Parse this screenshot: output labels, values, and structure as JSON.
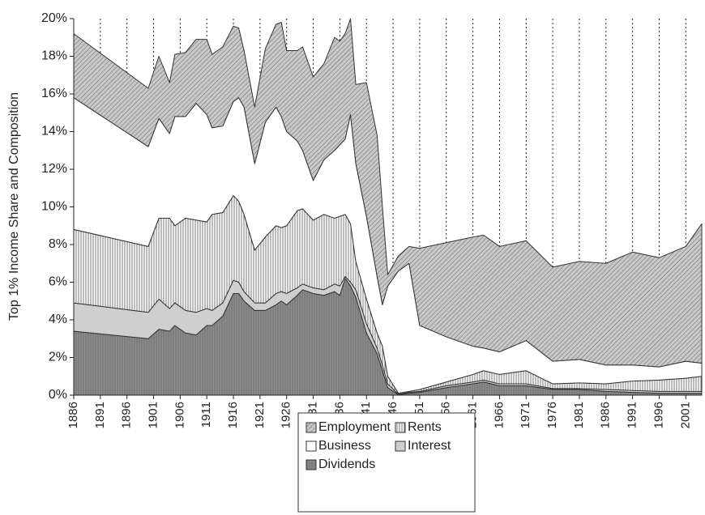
{
  "chart_data": {
    "type": "stacked_area",
    "y_label": "Top 1% Income Share and Composition",
    "xlim": [
      1886,
      2004
    ],
    "xticks": [
      1886,
      1891,
      1896,
      1901,
      1906,
      1911,
      1916,
      1921,
      1926,
      1931,
      1936,
      1941,
      1946,
      1951,
      1956,
      1961,
      1966,
      1971,
      1976,
      1981,
      1986,
      1991,
      1996,
      2001
    ],
    "ylim": [
      0,
      20
    ],
    "yticks": [
      {
        "value": 0,
        "label": "0%"
      },
      {
        "value": 2,
        "label": "2%"
      },
      {
        "value": 4,
        "label": "4%"
      },
      {
        "value": 6,
        "label": "6%"
      },
      {
        "value": 8,
        "label": "8%"
      },
      {
        "value": 10,
        "label": "10%"
      },
      {
        "value": 12,
        "label": "12%"
      },
      {
        "value": 14,
        "label": "14%"
      },
      {
        "value": 16,
        "label": "16%"
      },
      {
        "value": 18,
        "label": "18%"
      },
      {
        "value": 20,
        "label": "20%"
      }
    ],
    "grid": "x-dotted",
    "x": [
      1886,
      1900,
      1902,
      1904,
      1905,
      1907,
      1909,
      1911,
      1912,
      1914,
      1916,
      1917,
      1918,
      1920,
      1922,
      1924,
      1925,
      1926,
      1928,
      1929,
      1931,
      1933,
      1935,
      1936,
      1937,
      1938,
      1939,
      1941,
      1943,
      1944,
      1945,
      1947,
      1949,
      1951,
      1956,
      1961,
      1963,
      1966,
      1971,
      1976,
      1981,
      1986,
      1991,
      1996,
      2001,
      2004
    ],
    "series": [
      {
        "name": "Dividends",
        "color": "#8c8c8c",
        "pattern": "vertical-fine",
        "values": [
          3.4,
          3.0,
          3.5,
          3.4,
          3.7,
          3.3,
          3.2,
          3.7,
          3.7,
          4.2,
          5.4,
          5.4,
          5.0,
          4.5,
          4.5,
          4.8,
          5.0,
          4.8,
          5.3,
          5.6,
          5.4,
          5.3,
          5.5,
          5.3,
          6.2,
          5.8,
          5.2,
          3.3,
          2.2,
          1.3,
          0.4,
          0.02,
          0.1,
          0.15,
          0.4,
          0.6,
          0.7,
          0.5,
          0.5,
          0.3,
          0.3,
          0.2,
          0.15,
          0.1,
          0.1,
          0.1
        ]
      },
      {
        "name": "Interest",
        "color": "#cfcfcf",
        "pattern": "solid",
        "values": [
          1.5,
          1.4,
          1.6,
          1.2,
          1.2,
          1.2,
          1.2,
          0.9,
          0.8,
          0.7,
          0.7,
          0.6,
          0.5,
          0.4,
          0.4,
          0.6,
          0.5,
          0.6,
          0.4,
          0.3,
          0.3,
          0.3,
          0.4,
          0.5,
          0.1,
          0.2,
          0.4,
          0.5,
          0.3,
          0.3,
          0.2,
          0.03,
          0.05,
          0.05,
          0.1,
          0.1,
          0.1,
          0.1,
          0.1,
          0.05,
          0.05,
          0.1,
          0.1,
          0.1,
          0.1,
          0.1
        ]
      },
      {
        "name": "Rents",
        "color": "#ffffff",
        "pattern": "vertical",
        "values": [
          3.9,
          3.5,
          4.3,
          4.8,
          4.1,
          4.9,
          4.9,
          4.6,
          5.1,
          4.8,
          4.5,
          4.3,
          4.1,
          2.8,
          3.5,
          3.6,
          3.4,
          3.6,
          4.1,
          4.0,
          3.6,
          4.0,
          3.5,
          3.7,
          3.3,
          3.1,
          1.5,
          1.3,
          0.8,
          1.0,
          0.4,
          0.05,
          0.05,
          0.1,
          0.2,
          0.4,
          0.5,
          0.5,
          0.7,
          0.25,
          0.3,
          0.3,
          0.5,
          0.6,
          0.7,
          0.8
        ]
      },
      {
        "name": "Business",
        "color": "#ffffff",
        "pattern": "solid",
        "values": [
          7.0,
          5.3,
          5.3,
          4.5,
          5.8,
          5.4,
          6.2,
          5.7,
          4.6,
          4.6,
          5.0,
          5.5,
          5.7,
          4.6,
          6.1,
          6.3,
          5.9,
          5.0,
          3.7,
          3.1,
          2.1,
          2.9,
          3.6,
          3.8,
          4.0,
          5.8,
          5.2,
          4.4,
          3.0,
          2.2,
          4.8,
          6.5,
          6.8,
          3.4,
          2.4,
          1.5,
          1.2,
          1.2,
          1.6,
          1.2,
          1.25,
          1.0,
          0.85,
          0.7,
          0.9,
          0.7
        ]
      },
      {
        "name": "Employment",
        "color": "#c8c8c8",
        "pattern": "diagonal",
        "values": [
          3.4,
          3.1,
          3.3,
          2.7,
          3.3,
          3.4,
          3.4,
          4.0,
          3.9,
          4.2,
          4.0,
          3.7,
          3.0,
          3.0,
          3.9,
          4.4,
          5.0,
          4.3,
          4.8,
          5.5,
          5.5,
          5.1,
          6.0,
          5.5,
          5.6,
          5.1,
          4.2,
          7.1,
          7.5,
          5.2,
          0.6,
          0.8,
          0.9,
          4.1,
          5.0,
          5.8,
          6.0,
          5.6,
          5.3,
          5.0,
          5.2,
          5.4,
          6.0,
          5.8,
          6.1,
          7.4
        ]
      }
    ]
  }
}
